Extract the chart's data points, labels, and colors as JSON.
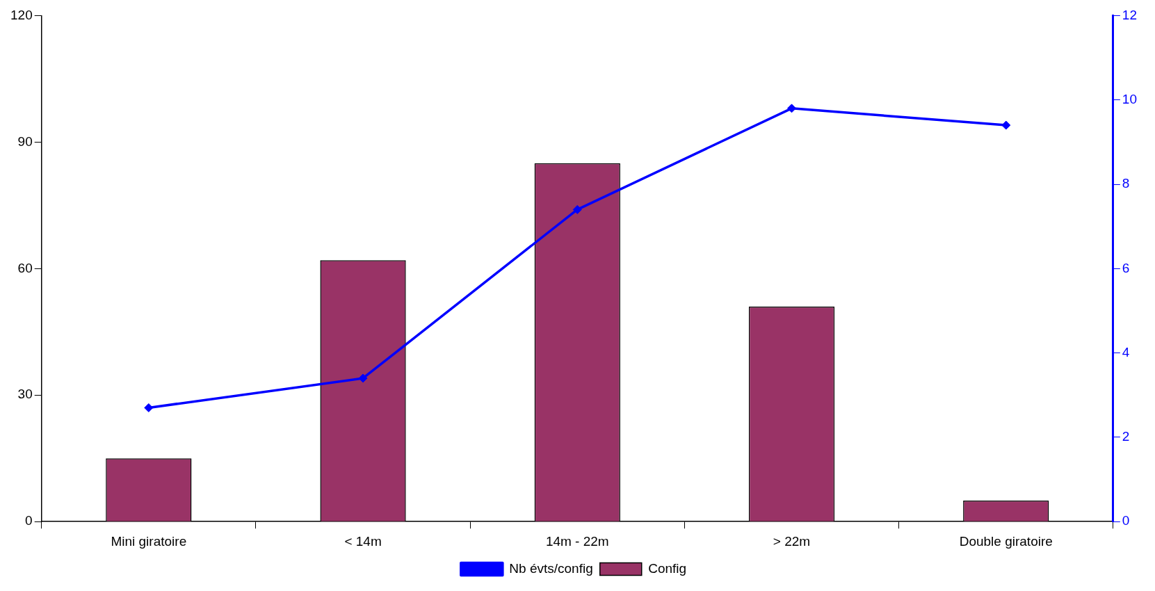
{
  "chart_data": {
    "type": "bar",
    "categories": [
      "Mini giratoire",
      "< 14m",
      "14m - 22m",
      "> 22m",
      "Double giratoire"
    ],
    "series": [
      {
        "name": "Config",
        "color": "#993366",
        "values": [
          15,
          62,
          85,
          51,
          5
        ]
      },
      {
        "name": "Nb évts/config",
        "type": "line",
        "axis": "y2",
        "color": "#0000ff",
        "values": [
          2.7,
          3.4,
          7.4,
          9.8,
          9.4
        ],
        "marker": "diamond",
        "line_style": "solid"
      }
    ],
    "ylim": [
      0,
      120
    ],
    "yticks": [
      0,
      30,
      60,
      90,
      120
    ],
    "y2lim": [
      0,
      12
    ],
    "y2ticks": [
      0,
      2,
      4,
      6,
      8,
      10,
      12
    ],
    "grid": false,
    "legend": "bottom"
  }
}
